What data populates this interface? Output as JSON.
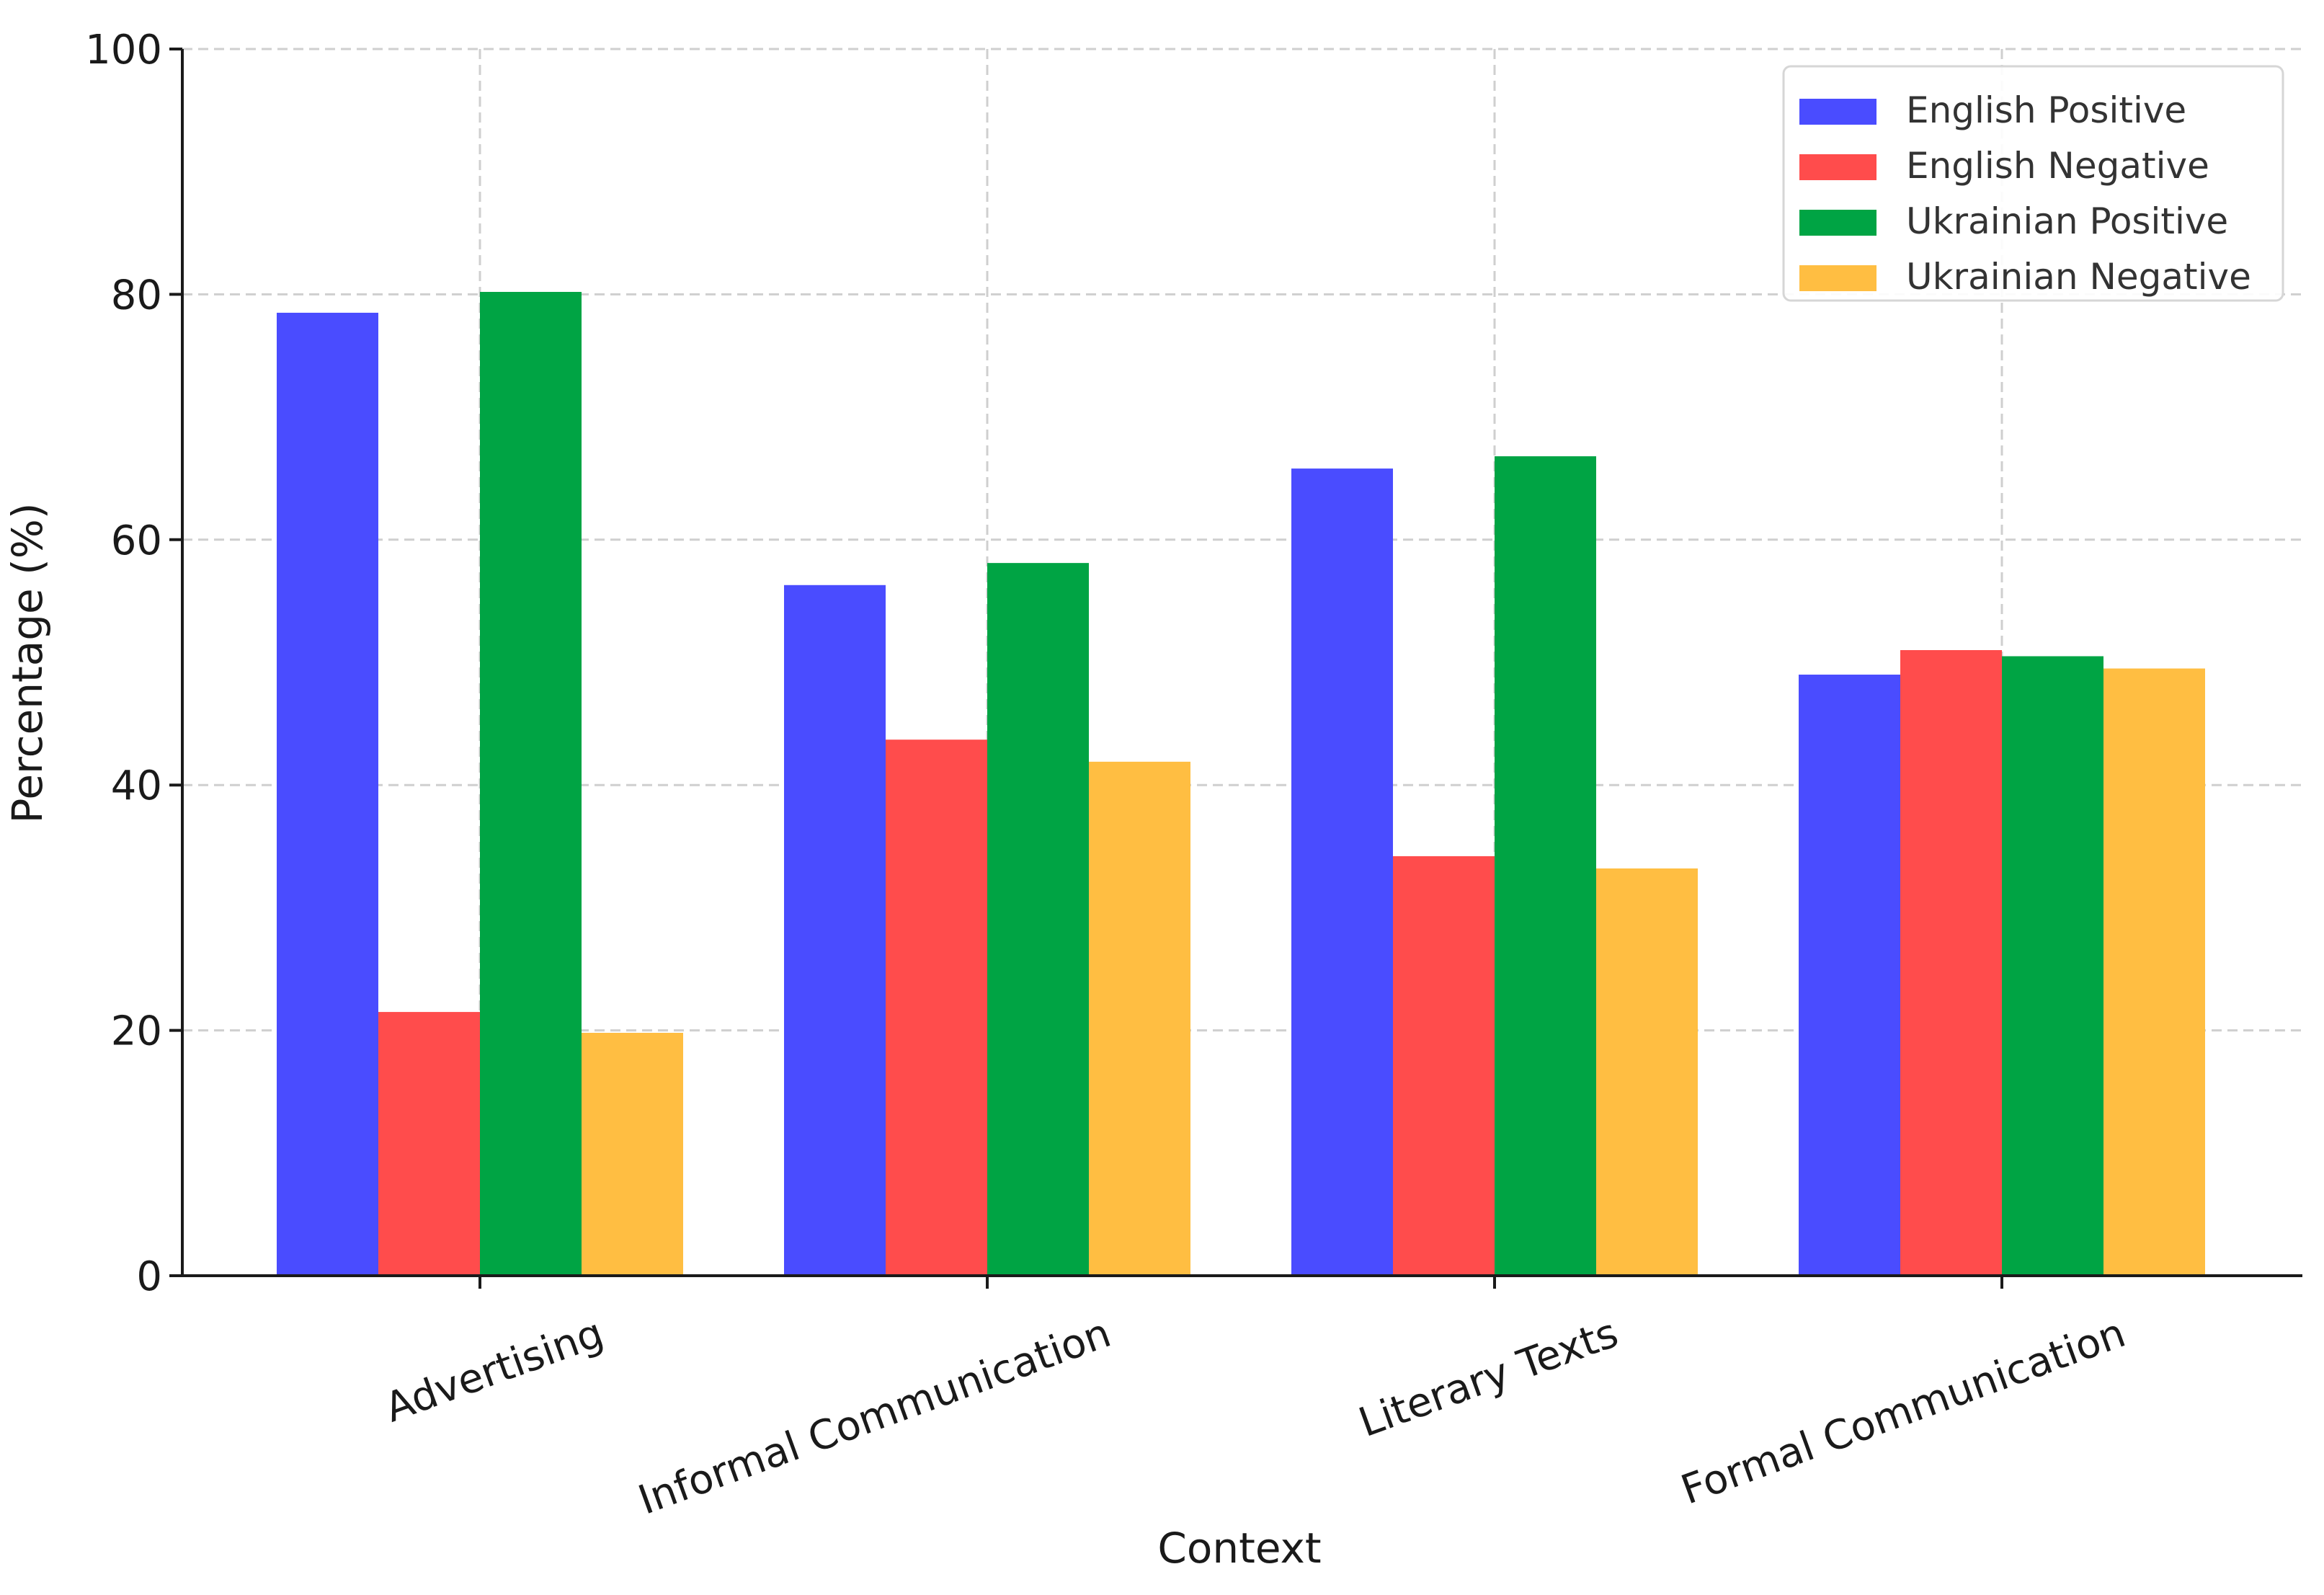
{
  "chart_data": {
    "type": "bar",
    "title": "",
    "xlabel": "Context",
    "ylabel": "Percentage (%)",
    "ylim": [
      0,
      100
    ],
    "yticks": [
      0,
      20,
      40,
      60,
      80,
      100
    ],
    "grid": true,
    "legend_position": "top-right",
    "categories": [
      "Advertising",
      "Informal Communication",
      "Literary Texts",
      "Formal Communication"
    ],
    "series": [
      {
        "name": "English Positive",
        "color": "#4a4cff",
        "values": [
          78.5,
          56.3,
          65.8,
          49.0
        ]
      },
      {
        "name": "English Negative",
        "color": "#ff4c4c",
        "values": [
          21.5,
          43.7,
          34.2,
          51.0
        ]
      },
      {
        "name": "Ukrainian Positive",
        "color": "#00a444",
        "values": [
          80.2,
          58.1,
          66.8,
          50.5
        ]
      },
      {
        "name": "Ukrainian Negative",
        "color": "#ffbe42",
        "values": [
          19.8,
          41.9,
          33.2,
          49.5
        ]
      }
    ]
  }
}
